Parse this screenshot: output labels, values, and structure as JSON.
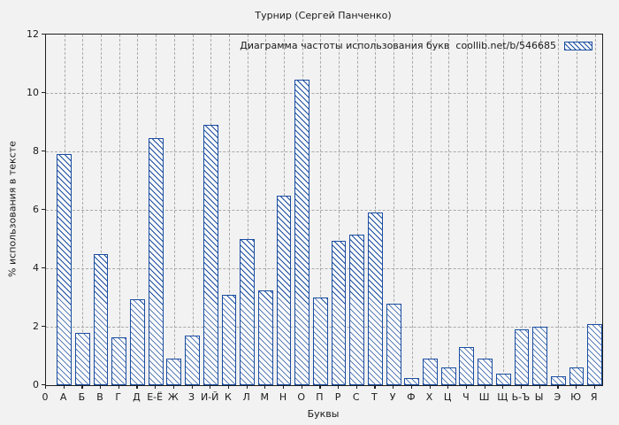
{
  "window": {
    "bg_color": "#f2f2f2",
    "accent_color": "#1a4da0",
    "grid_color": "#a9a9a9"
  },
  "chart_data": {
    "type": "bar",
    "title": "Турнир (Сергей Панченко)",
    "legend_label": "Диаграмма частоты использования букв  coollib.net/b/546685",
    "legend_position": "top-right",
    "legend_swatch": "hatched-bar-swatch",
    "xlabel": "Буквы",
    "ylabel": "% использования в тексте",
    "x_origin_label": "0",
    "ylim": [
      0,
      12
    ],
    "yticks": [
      0,
      2,
      4,
      6,
      8,
      10,
      12
    ],
    "grid": true,
    "bar_style": {
      "fill": "#fbfbfb",
      "hatch": "diagonal-backslash",
      "edge": "#1a4da0"
    },
    "categories": [
      "А",
      "Б",
      "В",
      "Г",
      "Д",
      "Е-Ё",
      "Ж",
      "З",
      "И-Й",
      "К",
      "Л",
      "М",
      "Н",
      "О",
      "П",
      "Р",
      "С",
      "Т",
      "У",
      "Ф",
      "Х",
      "Ц",
      "Ч",
      "Ш",
      "Щ",
      "Ь-Ъ",
      "Ы",
      "Э",
      "Ю",
      "Я"
    ],
    "values": [
      7.9,
      1.8,
      4.5,
      1.65,
      2.95,
      8.45,
      0.9,
      1.7,
      8.9,
      3.1,
      5.0,
      3.25,
      6.5,
      10.45,
      3.0,
      4.95,
      5.15,
      5.9,
      2.8,
      0.25,
      0.9,
      0.6,
      1.3,
      0.9,
      0.4,
      1.9,
      2.0,
      0.3,
      0.6,
      2.1
    ]
  }
}
